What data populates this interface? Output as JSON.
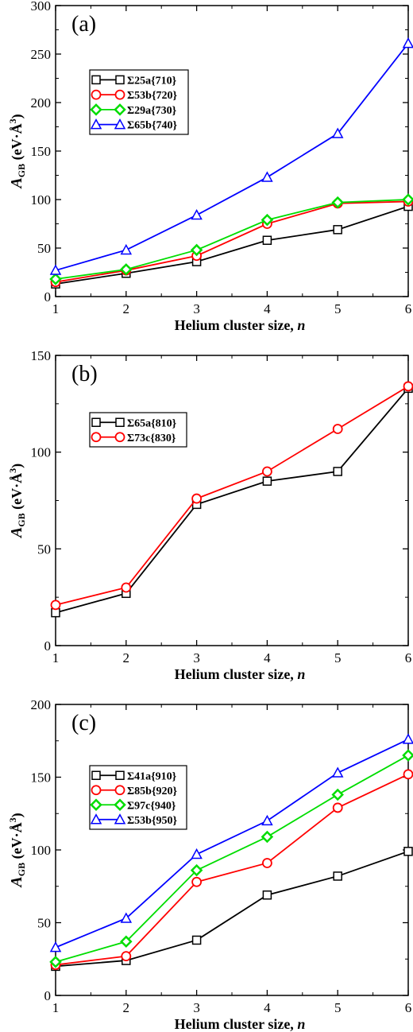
{
  "chart_data": [
    {
      "type": "line",
      "panel_label": "(a)",
      "xlabel_main": "Helium cluster size, ",
      "xlabel_var": "n",
      "ylabel_main": "A",
      "ylabel_sub": "GB",
      "ylabel_unit": " (eV·Å",
      "ylabel_exp": "3",
      "ylabel_close": ")",
      "x": [
        1,
        2,
        3,
        4,
        5,
        6
      ],
      "xlim": [
        1,
        6
      ],
      "ylim": [
        0,
        300
      ],
      "yticks": [
        0,
        50,
        100,
        150,
        200,
        250,
        300
      ],
      "xticks": [
        1,
        2,
        3,
        4,
        5,
        6
      ],
      "legend_position": "upper-left",
      "series": [
        {
          "name": "Σ25a{710}",
          "color": "#000000",
          "marker": "square",
          "values": [
            13,
            24,
            36,
            58,
            69,
            93
          ]
        },
        {
          "name": "Σ53b{720}",
          "color": "#ff0000",
          "marker": "circle",
          "values": [
            15,
            27,
            42,
            75,
            96,
            98
          ]
        },
        {
          "name": "Σ29a{730}",
          "color": "#00dd00",
          "marker": "diamond",
          "values": [
            18,
            28,
            48,
            79,
            97,
            100
          ]
        },
        {
          "name": "Σ65b{740}",
          "color": "#0000ff",
          "marker": "triangle",
          "values": [
            27,
            48,
            84,
            123,
            168,
            261
          ]
        }
      ]
    },
    {
      "type": "line",
      "panel_label": "(b)",
      "xlabel_main": "Helium cluster size, ",
      "xlabel_var": "n",
      "ylabel_main": "A",
      "ylabel_sub": "GB",
      "ylabel_unit": " (eV·Å",
      "ylabel_exp": "3",
      "ylabel_close": ")",
      "x": [
        1,
        2,
        3,
        4,
        5,
        6
      ],
      "xlim": [
        1,
        6
      ],
      "ylim": [
        0,
        150
      ],
      "yticks": [
        0,
        50,
        100,
        150
      ],
      "xticks": [
        1,
        2,
        3,
        4,
        5,
        6
      ],
      "legend_position": "upper-left",
      "series": [
        {
          "name": "Σ65a{810}",
          "color": "#000000",
          "marker": "square",
          "values": [
            17,
            27,
            73,
            85,
            90,
            133
          ]
        },
        {
          "name": "Σ73c{830}",
          "color": "#ff0000",
          "marker": "circle",
          "values": [
            21,
            30,
            76,
            90,
            112,
            134
          ]
        }
      ]
    },
    {
      "type": "line",
      "panel_label": "(c)",
      "xlabel_main": "Helium cluster size, ",
      "xlabel_var": "n",
      "ylabel_main": "A",
      "ylabel_sub": "GB",
      "ylabel_unit": " (eV·Å",
      "ylabel_exp": "3",
      "ylabel_close": ")",
      "x": [
        1,
        2,
        3,
        4,
        5,
        6
      ],
      "xlim": [
        1,
        6
      ],
      "ylim": [
        0,
        200
      ],
      "yticks": [
        0,
        50,
        100,
        150,
        200
      ],
      "xticks": [
        1,
        2,
        3,
        4,
        5,
        6
      ],
      "legend_position": "upper-left",
      "series": [
        {
          "name": "Σ41a{910}",
          "color": "#000000",
          "marker": "square",
          "values": [
            20,
            24,
            38,
            69,
            82,
            99
          ]
        },
        {
          "name": "Σ85b{920}",
          "color": "#ff0000",
          "marker": "circle",
          "values": [
            21,
            27,
            78,
            91,
            129,
            152
          ]
        },
        {
          "name": "Σ97c{940}",
          "color": "#00dd00",
          "marker": "diamond",
          "values": [
            23,
            37,
            86,
            109,
            138,
            165
          ]
        },
        {
          "name": "Σ53b{950}",
          "color": "#0000ff",
          "marker": "triangle",
          "values": [
            33,
            53,
            97,
            120,
            153,
            176
          ]
        }
      ]
    }
  ]
}
